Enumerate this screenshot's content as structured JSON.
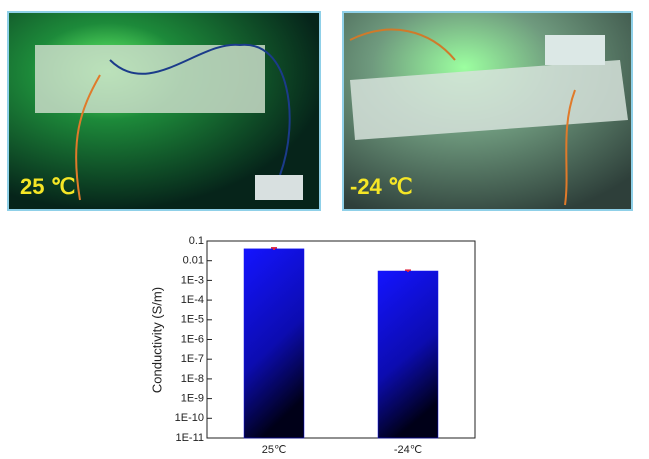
{
  "photos": [
    {
      "label": "25 ℃"
    },
    {
      "label": "-24 ℃"
    }
  ],
  "chart_data": {
    "type": "bar",
    "ylabel": "Conductivity (S/m)",
    "log_scale": true,
    "categories": [
      "25℃",
      "-24℃"
    ],
    "values": [
      0.04,
      0.003
    ],
    "errors": [
      0.005,
      0.0003
    ],
    "color": "#1212f0",
    "error_color": "#e0203a",
    "ylim": [
      1e-11,
      0.1
    ],
    "yticks": [
      0.1,
      0.01,
      {
        "value": 0.001,
        "label": "1E-3"
      },
      {
        "value": 0.0001,
        "label": "1E-4"
      },
      {
        "value": 1e-05,
        "label": "1E-5"
      },
      {
        "value": 1e-06,
        "label": "1E-6"
      },
      {
        "value": 1e-07,
        "label": "1E-7"
      },
      {
        "value": 1e-08,
        "label": "1E-8"
      },
      {
        "value": 1e-09,
        "label": "1E-9"
      },
      {
        "value": 1e-10,
        "label": "1E-10"
      },
      {
        "value": 1e-11,
        "label": "1E-11"
      }
    ]
  }
}
